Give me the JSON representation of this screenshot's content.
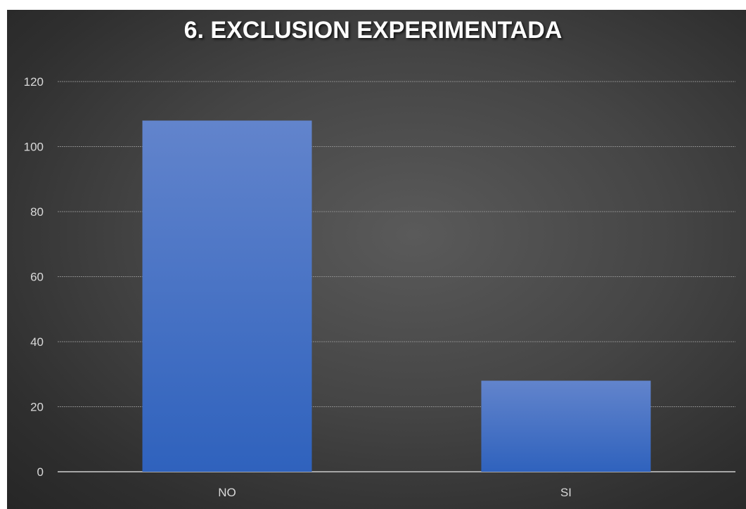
{
  "chart_data": {
    "type": "bar",
    "title": "6. EXCLUSION EXPERIMENTADA",
    "categories": [
      "NO",
      "SI"
    ],
    "values": [
      108,
      28
    ],
    "xlabel": "",
    "ylabel": "",
    "ylim": [
      0,
      120
    ],
    "yticks": [
      0,
      20,
      40,
      60,
      80,
      100,
      120
    ],
    "grid": true,
    "legend": "none",
    "colors": {
      "bar_top": "#6284cc",
      "bar_bottom": "#2f62bd",
      "background": "#3f3f3f",
      "gridline": "#8a8a8a",
      "text": "#d9d9d9"
    }
  }
}
